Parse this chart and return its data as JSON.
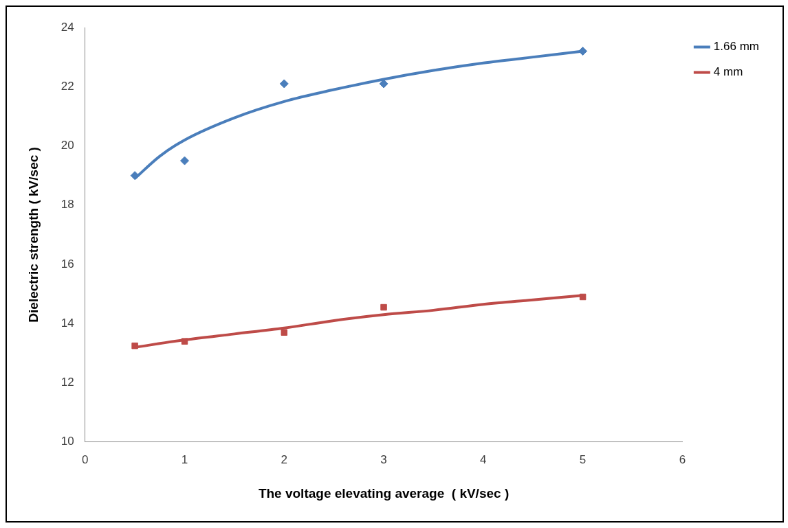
{
  "chart_data": {
    "type": "scatter",
    "xlabel": "The voltage elevating average  ( kV/sec )",
    "ylabel": "Dielectric strength ( kV/sec )",
    "xlim": [
      0,
      6
    ],
    "xticks": [
      0,
      1,
      2,
      3,
      4,
      5,
      6
    ],
    "ylim": [
      10,
      24
    ],
    "yticks": [
      10,
      12,
      14,
      16,
      18,
      20,
      22,
      24
    ],
    "grid": false,
    "legend": "top right",
    "series": [
      {
        "color": "#4a7ebb",
        "marker": "diamond",
        "x": [
          0.5,
          1,
          2,
          3,
          5
        ],
        "values": [
          19.0,
          19.5,
          22.1,
          22.1,
          23.2
        ]
      },
      {
        "color": "#be4b48",
        "marker": "square",
        "x": [
          0.5,
          1,
          2,
          3,
          5
        ],
        "values": [
          13.25,
          13.4,
          13.7,
          14.55,
          14.9
        ]
      },
      {
        "type": "line",
        "name": "1.66 mm",
        "color": "#4a7ebb",
        "marker": "none",
        "x": [
          0.5,
          0.75,
          1,
          1.5,
          2,
          2.5,
          3,
          3.5,
          4,
          4.5,
          5
        ],
        "values": [
          18.9,
          19.65,
          20.2,
          20.95,
          21.5,
          21.9,
          22.25,
          22.55,
          22.8,
          23.0,
          23.2
        ]
      },
      {
        "type": "line",
        "name": "4 mm",
        "color": "#be4b48",
        "marker": "none",
        "x": [
          0.5,
          1,
          1.5,
          2,
          2.5,
          3,
          3.5,
          4,
          4.5,
          5
        ],
        "values": [
          13.2,
          13.45,
          13.65,
          13.85,
          14.1,
          14.3,
          14.45,
          14.65,
          14.8,
          14.95
        ]
      }
    ]
  }
}
